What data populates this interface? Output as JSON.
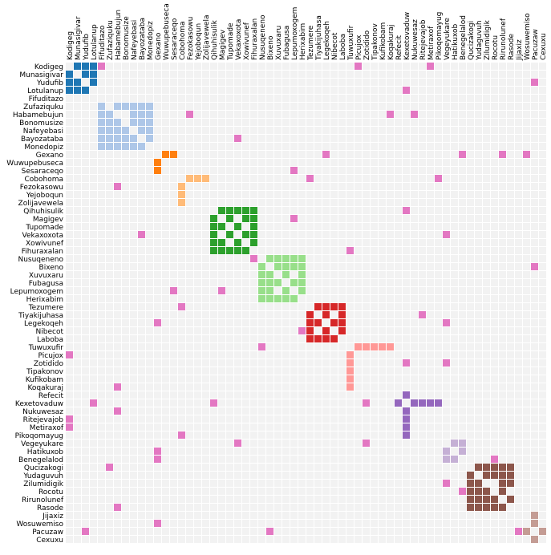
{
  "chart_data": {
    "type": "heatmap",
    "title": "",
    "labels": [
      "Kodigeg",
      "Munasigivar",
      "Yudufib",
      "Lotulanup",
      "Fifuditazo",
      "Zufaziquku",
      "Habamebujun",
      "Bonomusize",
      "Nafeyebasi",
      "Bayozataba",
      "Monedopiz",
      "Gexano",
      "Wuwupebuseca",
      "Sesaraceqo",
      "Cobohoma",
      "Fezokasowu",
      "Yejoboqun",
      "Zolijavewela",
      "Qihuhisulik",
      "Magigev",
      "Tupomade",
      "Vekaxoxota",
      "Xowivunef",
      "Fihuraxalan",
      "Nusuqeneno",
      "Bixeno",
      "Xuvuxaru",
      "Fubagusa",
      "Lepumoxogem",
      "Herixabim",
      "Tezumere",
      "Tiyakijuhasa",
      "Legekoqeh",
      "Nibecot",
      "Laboba",
      "Tuwuxufir",
      "Picujox",
      "Zotidido",
      "Tipakonov",
      "Kufikobam",
      "Koqakuraj",
      "Refecit",
      "Kexetovaduw",
      "Nukuwesaz",
      "Ritejevajob",
      "Metiraxof",
      "Pikoqomayug",
      "Vegeyukare",
      "Hatikuxob",
      "Benegelalod",
      "Qucizakogi",
      "Yudaguvuh",
      "Zilumidigik",
      "Rocotu",
      "Rirunolunef",
      "Rasode",
      "Jijaxiz",
      "Wosuwemiso",
      "Pacuzaw",
      "Cexuxu"
    ],
    "groups": [
      {
        "color": "#1f77b4",
        "members": [
          0,
          1,
          2,
          3
        ],
        "cells": [
          [
            0,
            1
          ],
          [
            0,
            2
          ],
          [
            0,
            3
          ],
          [
            1,
            0
          ],
          [
            1,
            2
          ],
          [
            1,
            3
          ],
          [
            2,
            0
          ],
          [
            2,
            1
          ],
          [
            2,
            3
          ],
          [
            3,
            0
          ],
          [
            3,
            1
          ],
          [
            3,
            2
          ]
        ]
      },
      {
        "color": "#aec7e8",
        "members": [
          4,
          5,
          6,
          7,
          8,
          9,
          10
        ],
        "cells": [
          [
            5,
            4
          ],
          [
            5,
            6
          ],
          [
            5,
            7
          ],
          [
            5,
            8
          ],
          [
            5,
            9
          ],
          [
            5,
            10
          ],
          [
            6,
            4
          ],
          [
            6,
            5
          ],
          [
            6,
            8
          ],
          [
            6,
            9
          ],
          [
            6,
            10
          ],
          [
            7,
            4
          ],
          [
            7,
            5
          ],
          [
            7,
            6
          ],
          [
            7,
            8
          ],
          [
            7,
            9
          ],
          [
            7,
            10
          ],
          [
            8,
            4
          ],
          [
            8,
            5
          ],
          [
            8,
            6
          ],
          [
            8,
            7
          ],
          [
            8,
            9
          ],
          [
            8,
            10
          ],
          [
            9,
            4
          ],
          [
            9,
            5
          ],
          [
            9,
            6
          ],
          [
            9,
            7
          ],
          [
            9,
            8
          ],
          [
            9,
            10
          ],
          [
            10,
            4
          ],
          [
            10,
            5
          ],
          [
            10,
            6
          ],
          [
            10,
            7
          ],
          [
            10,
            8
          ],
          [
            10,
            9
          ]
        ]
      },
      {
        "color": "#ff7f0e",
        "members": [
          11,
          12,
          13
        ],
        "cells": [
          [
            11,
            12
          ],
          [
            11,
            13
          ],
          [
            12,
            11
          ],
          [
            13,
            11
          ]
        ]
      },
      {
        "color": "#ffbb78",
        "members": [
          14,
          15,
          16,
          17
        ],
        "cells": [
          [
            14,
            15
          ],
          [
            14,
            16
          ],
          [
            14,
            17
          ],
          [
            15,
            14
          ],
          [
            16,
            14
          ],
          [
            17,
            14
          ]
        ]
      },
      {
        "color": "#2ca02c",
        "members": [
          18,
          19,
          20,
          21,
          22,
          23
        ],
        "cells": [
          [
            18,
            19
          ],
          [
            18,
            20
          ],
          [
            18,
            21
          ],
          [
            18,
            22
          ],
          [
            18,
            23
          ],
          [
            19,
            18
          ],
          [
            19,
            20
          ],
          [
            19,
            22
          ],
          [
            19,
            23
          ],
          [
            20,
            18
          ],
          [
            20,
            19
          ],
          [
            20,
            21
          ],
          [
            20,
            23
          ],
          [
            21,
            18
          ],
          [
            21,
            20
          ],
          [
            21,
            22
          ],
          [
            21,
            23
          ],
          [
            22,
            18
          ],
          [
            22,
            19
          ],
          [
            22,
            21
          ],
          [
            22,
            23
          ],
          [
            23,
            18
          ],
          [
            23,
            19
          ],
          [
            23,
            20
          ],
          [
            23,
            21
          ],
          [
            23,
            22
          ]
        ]
      },
      {
        "color": "#98df8a",
        "members": [
          24,
          25,
          26,
          27,
          28,
          29
        ],
        "cells": [
          [
            24,
            25
          ],
          [
            24,
            26
          ],
          [
            24,
            27
          ],
          [
            24,
            28
          ],
          [
            24,
            29
          ],
          [
            25,
            24
          ],
          [
            25,
            26
          ],
          [
            25,
            27
          ],
          [
            25,
            28
          ],
          [
            25,
            29
          ],
          [
            26,
            24
          ],
          [
            26,
            25
          ],
          [
            26,
            27
          ],
          [
            26,
            29
          ],
          [
            27,
            24
          ],
          [
            27,
            25
          ],
          [
            27,
            26
          ],
          [
            27,
            28
          ],
          [
            27,
            29
          ],
          [
            28,
            24
          ],
          [
            28,
            25
          ],
          [
            28,
            27
          ],
          [
            28,
            29
          ],
          [
            29,
            24
          ],
          [
            29,
            25
          ],
          [
            29,
            26
          ],
          [
            29,
            27
          ],
          [
            29,
            28
          ]
        ]
      },
      {
        "color": "#d62728",
        "members": [
          30,
          31,
          32,
          33,
          34
        ],
        "cells": [
          [
            30,
            31
          ],
          [
            30,
            32
          ],
          [
            30,
            33
          ],
          [
            30,
            34
          ],
          [
            31,
            30
          ],
          [
            31,
            32
          ],
          [
            31,
            34
          ],
          [
            32,
            30
          ],
          [
            32,
            31
          ],
          [
            32,
            33
          ],
          [
            32,
            34
          ],
          [
            33,
            30
          ],
          [
            33,
            32
          ],
          [
            33,
            34
          ],
          [
            34,
            30
          ],
          [
            34,
            31
          ],
          [
            34,
            32
          ],
          [
            34,
            33
          ]
        ]
      },
      {
        "color": "#ff9896",
        "members": [
          35,
          36,
          37,
          38,
          39,
          40
        ],
        "cells": [
          [
            35,
            36
          ],
          [
            35,
            37
          ],
          [
            35,
            38
          ],
          [
            35,
            39
          ],
          [
            35,
            40
          ],
          [
            36,
            35
          ],
          [
            37,
            35
          ],
          [
            38,
            35
          ],
          [
            39,
            35
          ],
          [
            40,
            35
          ]
        ]
      },
      {
        "color": "#9467bd",
        "members": [
          41,
          42,
          43,
          44,
          45,
          46
        ],
        "cells": [
          [
            41,
            42
          ],
          [
            42,
            41
          ],
          [
            42,
            43
          ],
          [
            42,
            44
          ],
          [
            42,
            45
          ],
          [
            42,
            46
          ],
          [
            43,
            42
          ],
          [
            44,
            42
          ],
          [
            45,
            42
          ],
          [
            46,
            42
          ]
        ]
      },
      {
        "color": "#c5b0d5",
        "members": [
          47,
          48,
          49
        ],
        "cells": [
          [
            47,
            48
          ],
          [
            47,
            49
          ],
          [
            48,
            47
          ],
          [
            48,
            49
          ],
          [
            49,
            47
          ],
          [
            49,
            48
          ]
        ]
      },
      {
        "color": "#8c564b",
        "members": [
          50,
          51,
          52,
          53,
          54,
          55
        ],
        "cells": [
          [
            50,
            51
          ],
          [
            50,
            52
          ],
          [
            50,
            53
          ],
          [
            50,
            54
          ],
          [
            50,
            55
          ],
          [
            51,
            50
          ],
          [
            51,
            52
          ],
          [
            51,
            53
          ],
          [
            51,
            54
          ],
          [
            51,
            55
          ],
          [
            52,
            50
          ],
          [
            52,
            51
          ],
          [
            52,
            54
          ],
          [
            52,
            55
          ],
          [
            53,
            50
          ],
          [
            53,
            51
          ],
          [
            53,
            52
          ],
          [
            53,
            54
          ],
          [
            54,
            50
          ],
          [
            54,
            51
          ],
          [
            54,
            52
          ],
          [
            54,
            53
          ],
          [
            54,
            55
          ],
          [
            55,
            50
          ],
          [
            55,
            51
          ],
          [
            55,
            52
          ],
          [
            55,
            53
          ],
          [
            55,
            54
          ]
        ]
      },
      {
        "color": "#c49c94",
        "members": [
          56,
          57,
          58,
          59
        ],
        "cells": [
          [
            56,
            58
          ],
          [
            57,
            58
          ],
          [
            58,
            56
          ],
          [
            58,
            57
          ],
          [
            58,
            59
          ],
          [
            59,
            58
          ]
        ]
      }
    ],
    "inter_group_color": "#e377c2",
    "inter_group_links": [
      [
        0,
        4
      ],
      [
        0,
        36
      ],
      [
        0,
        45
      ],
      [
        2,
        58
      ],
      [
        3,
        42
      ],
      [
        6,
        15
      ],
      [
        6,
        40
      ],
      [
        6,
        43
      ],
      [
        9,
        21
      ],
      [
        11,
        32
      ],
      [
        11,
        49
      ],
      [
        11,
        54
      ],
      [
        11,
        57
      ],
      [
        13,
        28
      ],
      [
        14,
        30
      ],
      [
        14,
        46
      ],
      [
        15,
        6
      ],
      [
        18,
        42
      ],
      [
        19,
        28
      ],
      [
        21,
        9
      ],
      [
        21,
        47
      ],
      [
        23,
        35
      ],
      [
        24,
        23
      ],
      [
        25,
        58
      ],
      [
        28,
        13
      ],
      [
        28,
        19
      ],
      [
        30,
        14
      ],
      [
        31,
        44
      ],
      [
        32,
        11
      ],
      [
        32,
        47
      ],
      [
        33,
        29
      ],
      [
        35,
        24
      ],
      [
        36,
        0
      ],
      [
        37,
        42
      ],
      [
        37,
        47
      ],
      [
        40,
        6
      ],
      [
        42,
        3
      ],
      [
        42,
        18
      ],
      [
        42,
        37
      ],
      [
        43,
        6
      ],
      [
        44,
        0
      ],
      [
        45,
        0
      ],
      [
        46,
        14
      ],
      [
        47,
        21
      ],
      [
        47,
        37
      ],
      [
        48,
        11
      ],
      [
        49,
        11
      ],
      [
        49,
        53
      ],
      [
        50,
        5
      ],
      [
        52,
        47
      ],
      [
        53,
        49
      ],
      [
        55,
        6
      ],
      [
        57,
        11
      ],
      [
        58,
        2
      ],
      [
        58,
        25
      ],
      [
        58,
        56
      ]
    ],
    "background_color": "#f2f2f2",
    "grid": true
  }
}
